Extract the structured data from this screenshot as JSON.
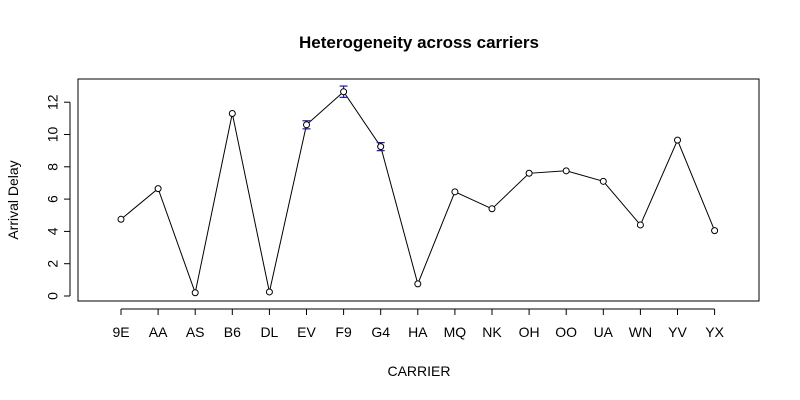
{
  "chart_data": {
    "type": "line",
    "title": "Heterogeneity across carriers",
    "xlabel": "CARRIER",
    "ylabel": "Arrival Delay",
    "categories": [
      "9E",
      "AA",
      "AS",
      "B6",
      "DL",
      "EV",
      "F9",
      "G4",
      "HA",
      "MQ",
      "NK",
      "OH",
      "OO",
      "UA",
      "WN",
      "YV",
      "YX"
    ],
    "values": [
      4.75,
      6.65,
      0.2,
      11.3,
      0.25,
      10.6,
      12.65,
      9.25,
      0.75,
      6.45,
      5.4,
      7.6,
      7.75,
      7.1,
      4.4,
      9.65,
      4.05
    ],
    "error_bars": [
      {
        "category": "EV",
        "low": 10.35,
        "high": 10.85
      },
      {
        "category": "F9",
        "low": 12.3,
        "high": 13.0
      },
      {
        "category": "G4",
        "low": 9.0,
        "high": 9.5
      }
    ],
    "yticks": [
      0,
      2,
      4,
      6,
      8,
      10,
      12
    ],
    "ylim": [
      -0.3,
      13.2
    ],
    "grid": false,
    "line_color": "#000000",
    "errorbar_color": "#1a1aa8"
  }
}
